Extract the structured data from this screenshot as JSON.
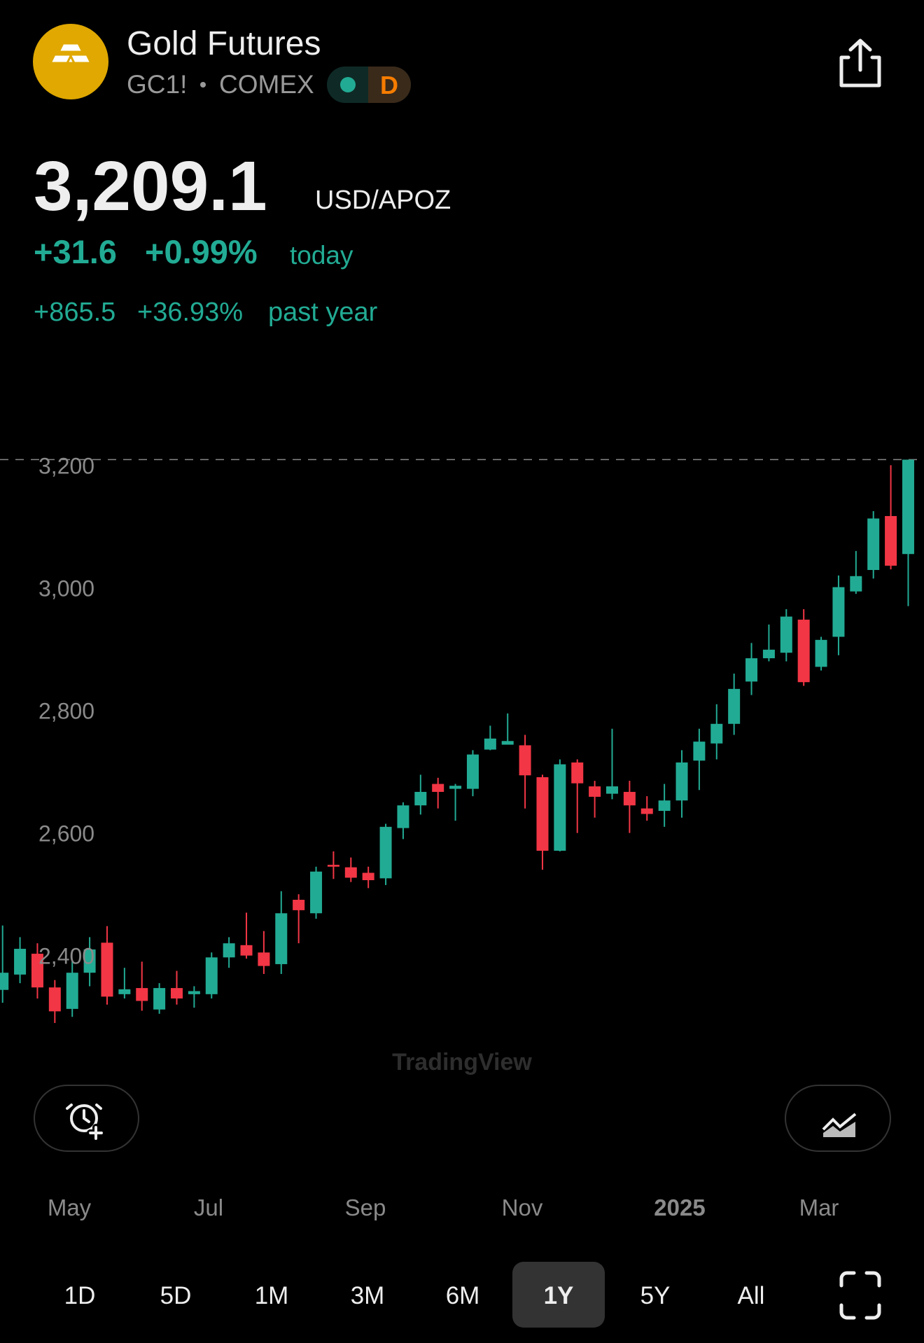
{
  "header": {
    "title": "Gold Futures",
    "symbol": "GC1!",
    "exchange": "COMEX",
    "badge": "D"
  },
  "quote": {
    "price": "3,209.1",
    "unit": "USD/APOZ",
    "change_today": "+31.6",
    "change_today_pct": "+0.99%",
    "today_label": "today",
    "change_year": "+865.5",
    "change_year_pct": "+36.93%",
    "year_label": "past year"
  },
  "chart_data": {
    "type": "candlestick",
    "up_color": "#22ab94",
    "down_color": "#f23645",
    "open": [
      2344,
      2369,
      2403,
      2348,
      2313,
      2372,
      2421,
      2337,
      2347,
      2312,
      2347,
      2337,
      2337,
      2397,
      2417,
      2405,
      2386,
      2491,
      2469,
      2548,
      2544,
      2535,
      2526,
      2608,
      2645,
      2680,
      2672,
      2672,
      2736,
      2744,
      2743,
      2691,
      2571,
      2715,
      2676,
      2664,
      2667,
      2640,
      2636,
      2653,
      2718,
      2746,
      2778,
      2847,
      2885,
      2894,
      2948,
      2871,
      2920,
      2994,
      3029,
      3117,
      3055
    ],
    "high": [
      2449,
      2430,
      2420,
      2360,
      2390,
      2430,
      2448,
      2380,
      2390,
      2355,
      2375,
      2350,
      2405,
      2430,
      2470,
      2440,
      2505,
      2500,
      2545,
      2570,
      2560,
      2545,
      2615,
      2650,
      2695,
      2690,
      2680,
      2735,
      2775,
      2795,
      2760,
      2695,
      2720,
      2720,
      2685,
      2770,
      2685,
      2660,
      2680,
      2735,
      2770,
      2810,
      2860,
      2910,
      2940,
      2965,
      2965,
      2920,
      3020,
      3060,
      3125,
      3200,
      3209
    ],
    "low": [
      2323,
      2355,
      2330,
      2290,
      2300,
      2350,
      2320,
      2330,
      2310,
      2305,
      2320,
      2315,
      2330,
      2380,
      2395,
      2370,
      2370,
      2420,
      2460,
      2525,
      2520,
      2510,
      2515,
      2590,
      2630,
      2640,
      2620,
      2660,
      2735,
      2745,
      2640,
      2540,
      2570,
      2600,
      2625,
      2655,
      2600,
      2620,
      2610,
      2625,
      2670,
      2720,
      2760,
      2825,
      2880,
      2880,
      2840,
      2865,
      2890,
      2990,
      3015,
      3030,
      2970
    ],
    "close": [
      2372,
      2411,
      2348,
      2309,
      2372,
      2410,
      2333,
      2345,
      2326,
      2347,
      2330,
      2342,
      2397,
      2420,
      2400,
      2383,
      2469,
      2474,
      2537,
      2545,
      2527,
      2523,
      2610,
      2645,
      2667,
      2667,
      2677,
      2728,
      2754,
      2750,
      2694,
      2571,
      2712,
      2681,
      2659,
      2676,
      2645,
      2631,
      2653,
      2715,
      2749,
      2778,
      2835,
      2885,
      2899,
      2953,
      2846,
      2915,
      3001,
      3019,
      3113,
      3036,
      3209
    ],
    "last_price": 3209.1,
    "ylim": [
      2250,
      3350
    ],
    "yticks": [
      {
        "value": 2400,
        "label": "2,400"
      },
      {
        "value": 2600,
        "label": "2,600"
      },
      {
        "value": 2800,
        "label": "2,800"
      },
      {
        "value": 3000,
        "label": "3,000"
      },
      {
        "value": 3200,
        "label": "3,200"
      }
    ],
    "xticks": [
      "May",
      "Jul",
      "Sep",
      "Nov",
      "2025",
      "Mar"
    ],
    "watermark": "TradingView"
  },
  "ranges": {
    "items": [
      "1D",
      "5D",
      "1M",
      "3M",
      "6M",
      "1Y",
      "5Y",
      "All"
    ],
    "selected": "1Y"
  }
}
